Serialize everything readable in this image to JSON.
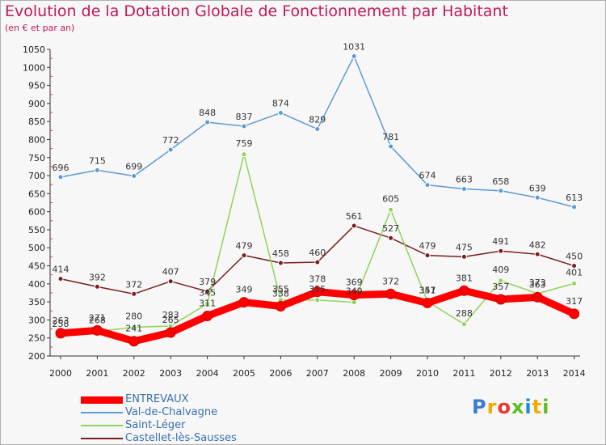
{
  "header": {
    "title": "Evolution de la Dotation Globale de Fonctionnement par Habitant",
    "subtitle": "(en € et par an)"
  },
  "logo": {
    "text": "Proxiti",
    "colors": [
      "#3a7bd5",
      "#f2a900",
      "#e53935",
      "#5bbf21",
      "#1e88e5",
      "#f2a900",
      "#5bbf21"
    ]
  },
  "chart_data": {
    "type": "line",
    "x": [
      "2000",
      "2001",
      "2002",
      "2003",
      "2004",
      "2005",
      "2006",
      "2007",
      "2008",
      "2009",
      "2010",
      "2011",
      "2012",
      "2013",
      "2014"
    ],
    "ylim": [
      200,
      1050
    ],
    "yticks": [
      200,
      250,
      300,
      350,
      400,
      450,
      500,
      550,
      600,
      650,
      700,
      750,
      800,
      850,
      900,
      950,
      1000,
      1050
    ],
    "grid": false,
    "legend_position": "bottom-left",
    "series": [
      {
        "name": "Val-de-Chalvagne",
        "color": "#5b9bd5",
        "values": [
          696,
          715,
          699,
          772,
          848,
          837,
          874,
          829,
          1031,
          781,
          674,
          663,
          658,
          639,
          613
        ]
      },
      {
        "name": "Castellet-lès-Sausses",
        "color": "#7b1e1e",
        "values": [
          414,
          392,
          372,
          407,
          379,
          479,
          458,
          460,
          561,
          527,
          479,
          475,
          491,
          482,
          450
        ]
      },
      {
        "name": "Saint-Léger",
        "color": "#8fd45a",
        "values": [
          258,
          268,
          280,
          283,
          345,
          759,
          355,
          355,
          349,
          605,
          351,
          288,
          409,
          373,
          401
        ]
      },
      {
        "name": "ENTREVAUX",
        "color": "#ff0000",
        "values": [
          263,
          271,
          241,
          265,
          311,
          349,
          338,
          378,
          369,
          372,
          347,
          381,
          357,
          363,
          317
        ]
      }
    ],
    "label_order": [
      "Val-de-Chalvagne",
      "Castellet-lès-Sausses",
      "Saint-Léger",
      "ENTREVAUX"
    ]
  }
}
